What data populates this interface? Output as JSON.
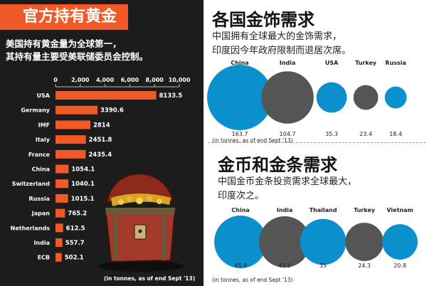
{
  "left_panel": {
    "title": "官方持有黄金",
    "subtitle_line1": "美国持有黄金量为全球第一，",
    "subtitle_line2": "其持有量主要受美联储委员会控制。",
    "colors": {
      "bar": "#f05a28",
      "background": "#1c1c1c",
      "title_bg": "#f05a28"
    }
  },
  "right_panel": {
    "jewellery_title": "各国金饰需求",
    "jewellery_sub_line1": "中国拥有全球最大的金饰需求，",
    "jewellery_sub_line2": "印度因今年政府限制而退居次席。",
    "bar_title": "金币和金条需求",
    "bar_sub_line1": "中国金币金条投资需求全球最大，",
    "bar_sub_line2": "印度次之。",
    "colors": {
      "blue": "#0b8fcd",
      "grey": "#555555"
    }
  },
  "chart_data": [
    {
      "type": "bar",
      "orientation": "horizontal",
      "title": "官方持有黄金",
      "categories": [
        "USA",
        "Germany",
        "IMF",
        "Italy",
        "France",
        "China",
        "Switzerland",
        "Russia",
        "Japan",
        "Netherlands",
        "India",
        "ECB"
      ],
      "values": [
        8133.5,
        3390.6,
        2814,
        2451.8,
        2435.4,
        1054.1,
        1040.1,
        1015.1,
        765.2,
        612.5,
        557.7,
        502.1
      ],
      "value_labels": [
        "8133.5",
        "3390.6",
        "2814",
        "2451.8",
        "2435.4",
        "1054.1",
        "1040.1",
        "1015.1",
        "765.2",
        "612.5",
        "557.7",
        "502.1"
      ],
      "xticks": [
        "0",
        "2,000",
        "4,000",
        "6,000",
        "8,000",
        "10,000"
      ],
      "xlim": [
        0,
        10000
      ],
      "note": "(in tonnes, as of end Sept '13)"
    },
    {
      "type": "bubble",
      "title": "各国金饰需求",
      "categories": [
        "China",
        "India",
        "USA",
        "Turkey",
        "Russia"
      ],
      "values": [
        163.7,
        104.7,
        35.3,
        23.4,
        18.4
      ],
      "value_labels": [
        "163.7",
        "104.7",
        "35.3",
        "23.4",
        "18.4"
      ],
      "color_keys": [
        "blue",
        "grey",
        "blue",
        "grey",
        "blue"
      ],
      "note": "(in tonnes, as of end Sept '13)"
    },
    {
      "type": "bubble",
      "title": "金币和金条需求",
      "categories": [
        "China",
        "India",
        "Thailand",
        "Turkey",
        "Vietnam"
      ],
      "values": [
        45.9,
        43.5,
        35,
        24.3,
        20.8
      ],
      "value_labels": [
        "45.9",
        "43.5",
        "35",
        "24.3",
        "20.8"
      ],
      "color_keys": [
        "blue",
        "grey",
        "blue",
        "grey",
        "blue"
      ],
      "note": "(in tonnes, as of end Sept '13)"
    }
  ]
}
